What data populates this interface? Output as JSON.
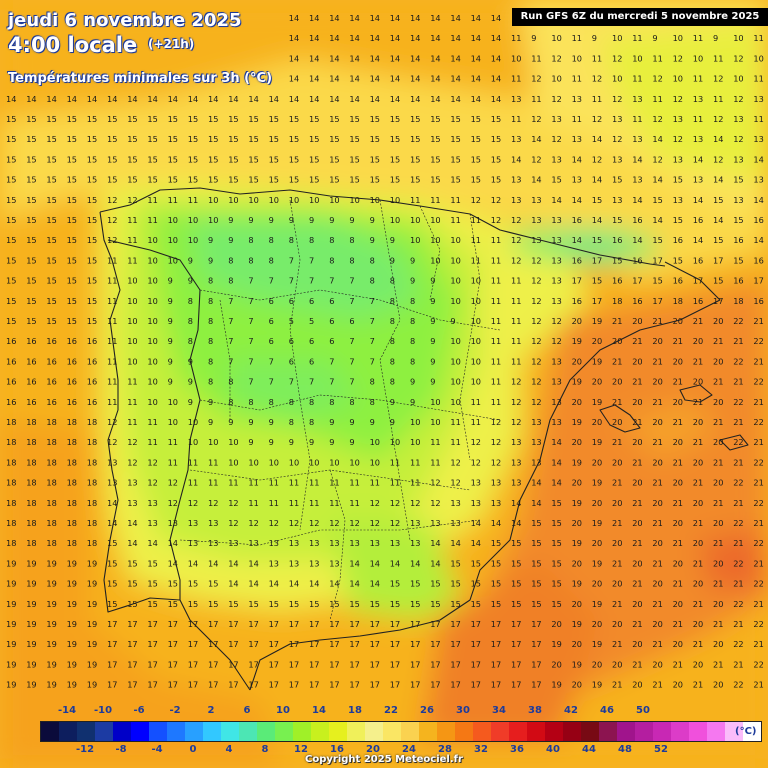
{
  "header": {
    "date": "jeudi 6 novembre 2025",
    "local_time": "4:00 locale",
    "lead_time": "(+21h)",
    "subtitle": "Températures minimales sur 3h (°C)",
    "run_info": "Run GFS 6Z du mercredi 5 novembre 2025"
  },
  "copyright": "Copyright 2025 Meteociel.fr",
  "legend": {
    "unit": "(°C)",
    "top_labels": [
      "-14",
      "-10",
      "-6",
      "-2",
      "2",
      "6",
      "10",
      "14",
      "18",
      "22",
      "26",
      "30",
      "34",
      "38",
      "42",
      "46",
      "50"
    ],
    "bottom_labels": [
      "-12",
      "-8",
      "-4",
      "0",
      "4",
      "8",
      "12",
      "16",
      "20",
      "24",
      "28",
      "32",
      "36",
      "40",
      "44",
      "48",
      "52"
    ],
    "colors": [
      "#0b0b3b",
      "#0d1e5e",
      "#10306f",
      "#1c3ba3",
      "#0000c8",
      "#0000ff",
      "#1450ff",
      "#1e78ff",
      "#28a0ff",
      "#32c8ff",
      "#40e6e6",
      "#4ce6b4",
      "#5aeb78",
      "#78f050",
      "#a0f028",
      "#c8f01e",
      "#e6f01e",
      "#f0f05a",
      "#f5f08c",
      "#fae664",
      "#fad250",
      "#f5b41e",
      "#f59614",
      "#f57814",
      "#f55a1e",
      "#f03c28",
      "#e61e1e",
      "#d20a14",
      "#b40014",
      "#960014",
      "#780a14",
      "#8c1450",
      "#a0148c",
      "#b41ea0",
      "#c828b4",
      "#dc3cc8",
      "#f050dc",
      "#f578f0",
      "#fabcfa",
      "#ffffff"
    ]
  },
  "icons": [
    "country-border-lines",
    "region-border-lines"
  ]
}
